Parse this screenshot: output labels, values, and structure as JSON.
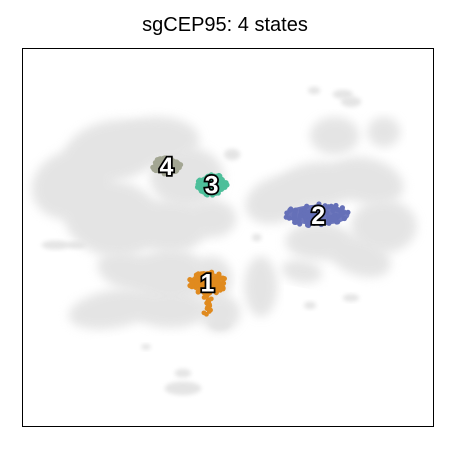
{
  "chart_data": {
    "type": "scatter",
    "title": "sgCEP95: 4 states",
    "xlabel": "",
    "ylabel": "",
    "grid": false,
    "axis_ticks": false,
    "background_color": "#dcdcdc",
    "series": [
      {
        "label": "1",
        "color": "#e08a1e",
        "center": [
          0.45,
          0.62
        ]
      },
      {
        "label": "2",
        "color": "#6570b8",
        "center": [
          0.72,
          0.44
        ]
      },
      {
        "label": "3",
        "color": "#4dbf9a",
        "center": [
          0.46,
          0.36
        ]
      },
      {
        "label": "4",
        "color": "#a3a693",
        "center": [
          0.35,
          0.31
        ]
      }
    ]
  }
}
